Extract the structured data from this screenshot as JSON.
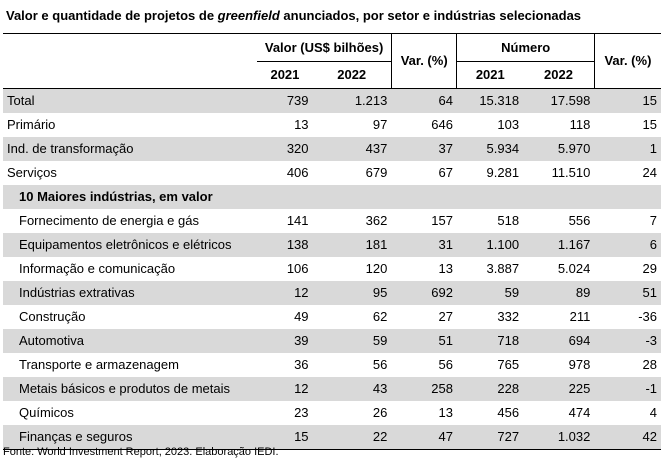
{
  "title": {
    "part1": "Valor e quantidade de projetos de ",
    "italic": "greenfield",
    "part2": " anunciados, por setor e indústrias selecionadas"
  },
  "headers": {
    "valor": "Valor (US$ bilhões)",
    "numero": "Número",
    "var1": "Var. (%)",
    "var2": "Var. (%)",
    "y1": "2021",
    "y2": "2022",
    "y3": "2021",
    "y4": "2022"
  },
  "rows": [
    {
      "label": "Total",
      "v2021": "739",
      "v2022": "1.213",
      "var": "64",
      "n2021": "15.318",
      "n2022": "17.598",
      "nvar": "15"
    },
    {
      "label": "Primário",
      "v2021": "13",
      "v2022": "97",
      "var": "646",
      "n2021": "103",
      "n2022": "118",
      "nvar": "15"
    },
    {
      "label": "Ind. de transformação",
      "v2021": "320",
      "v2022": "437",
      "var": "37",
      "n2021": "5.934",
      "n2022": "5.970",
      "nvar": "1"
    },
    {
      "label": "Serviços",
      "v2021": "406",
      "v2022": "679",
      "var": "67",
      "n2021": "9.281",
      "n2022": "11.510",
      "nvar": "24"
    }
  ],
  "group_label": "10 Maiores indústrias, em valor",
  "industries": [
    {
      "label": "Fornecimento de energia e gás",
      "v2021": "141",
      "v2022": "362",
      "var": "157",
      "n2021": "518",
      "n2022": "556",
      "nvar": "7"
    },
    {
      "label": "Equipamentos eletrônicos e elétricos",
      "v2021": "138",
      "v2022": "181",
      "var": "31",
      "n2021": "1.100",
      "n2022": "1.167",
      "nvar": "6"
    },
    {
      "label": "Informação e comunicação",
      "v2021": "106",
      "v2022": "120",
      "var": "13",
      "n2021": "3.887",
      "n2022": "5.024",
      "nvar": "29"
    },
    {
      "label": "Indústrias extrativas",
      "v2021": "12",
      "v2022": "95",
      "var": "692",
      "n2021": "59",
      "n2022": "89",
      "nvar": "51"
    },
    {
      "label": "Construção",
      "v2021": "49",
      "v2022": "62",
      "var": "27",
      "n2021": "332",
      "n2022": "211",
      "nvar": "-36"
    },
    {
      "label": "Automotiva",
      "v2021": "39",
      "v2022": "59",
      "var": "51",
      "n2021": "718",
      "n2022": "694",
      "nvar": "-3"
    },
    {
      "label": "Transporte e armazenagem",
      "v2021": "36",
      "v2022": "56",
      "var": "56",
      "n2021": "765",
      "n2022": "978",
      "nvar": "28"
    },
    {
      "label": "Metais básicos e produtos de metais",
      "v2021": "12",
      "v2022": "43",
      "var": "258",
      "n2021": "228",
      "n2022": "225",
      "nvar": "-1"
    },
    {
      "label": "Químicos",
      "v2021": "23",
      "v2022": "26",
      "var": "13",
      "n2021": "456",
      "n2022": "474",
      "nvar": "4"
    },
    {
      "label": "Finanças e seguros",
      "v2021": "15",
      "v2022": "22",
      "var": "47",
      "n2021": "727",
      "n2022": "1.032",
      "nvar": "42"
    }
  ],
  "source": "Fonte: World Investment Report, 2023. Elaboração IEDI."
}
